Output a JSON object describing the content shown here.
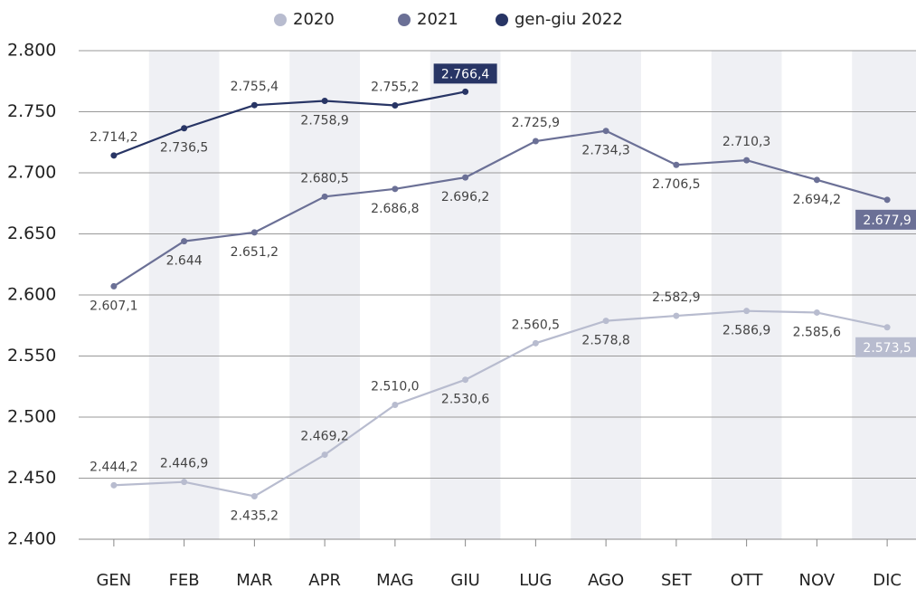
{
  "chart_data": {
    "type": "line",
    "categories": [
      "GEN",
      "FEB",
      "MAR",
      "APR",
      "MAG",
      "GIU",
      "LUG",
      "AGO",
      "SET",
      "OTT",
      "NOV",
      "DIC"
    ],
    "series": [
      {
        "name": "2020",
        "color": "#b8bccf",
        "values": [
          2444.2,
          2446.9,
          2435.2,
          2469.2,
          2510.0,
          2530.6,
          2560.5,
          2578.8,
          2582.9,
          2586.9,
          2585.6,
          2573.5
        ],
        "value_labels": [
          "2.444,2",
          "2.446,9",
          "2.435,2",
          "2.469,2",
          "2.510,0",
          "2.530,6",
          "2.560,5",
          "2.578,8",
          "2.582,9",
          "2.586,9",
          "2.585,6",
          "2.573,5"
        ]
      },
      {
        "name": "2021",
        "color": "#6b7096",
        "values": [
          2607.1,
          2644,
          2651.2,
          2680.5,
          2686.8,
          2696.2,
          2725.9,
          2734.3,
          2706.5,
          2710.3,
          2694.2,
          2677.9
        ],
        "value_labels": [
          "2.607,1",
          "2.644",
          "2.651,2",
          "2.680,5",
          "2.686,8",
          "2.696,2",
          "2.725,9",
          "2.734,3",
          "2.706,5",
          "2.710,3",
          "2.694,2",
          "2.677,9"
        ]
      },
      {
        "name": "gen-giu 2022",
        "color": "#283565",
        "values": [
          2714.2,
          2736.5,
          2755.4,
          2758.9,
          2755.2,
          2766.4,
          null,
          null,
          null,
          null,
          null,
          null
        ],
        "value_labels": [
          "2.714,2",
          "2.736,5",
          "2.755,4",
          "2.758,9",
          "2.755,2",
          "2.766,4",
          null,
          null,
          null,
          null,
          null,
          null
        ]
      }
    ],
    "ylim": [
      2400,
      2800
    ],
    "yticks": [
      {
        "value": 2400,
        "label": "2.400"
      },
      {
        "value": 2450,
        "label": "2.450"
      },
      {
        "value": 2500,
        "label": "2.500"
      },
      {
        "value": 2550,
        "label": "2.550"
      },
      {
        "value": 2600,
        "label": "2.600"
      },
      {
        "value": 2650,
        "label": "2.650"
      },
      {
        "value": 2700,
        "label": "2.700"
      },
      {
        "value": 2750,
        "label": "2.750"
      },
      {
        "value": 2800,
        "label": "2.800"
      }
    ],
    "grid": true,
    "legend": "top"
  }
}
